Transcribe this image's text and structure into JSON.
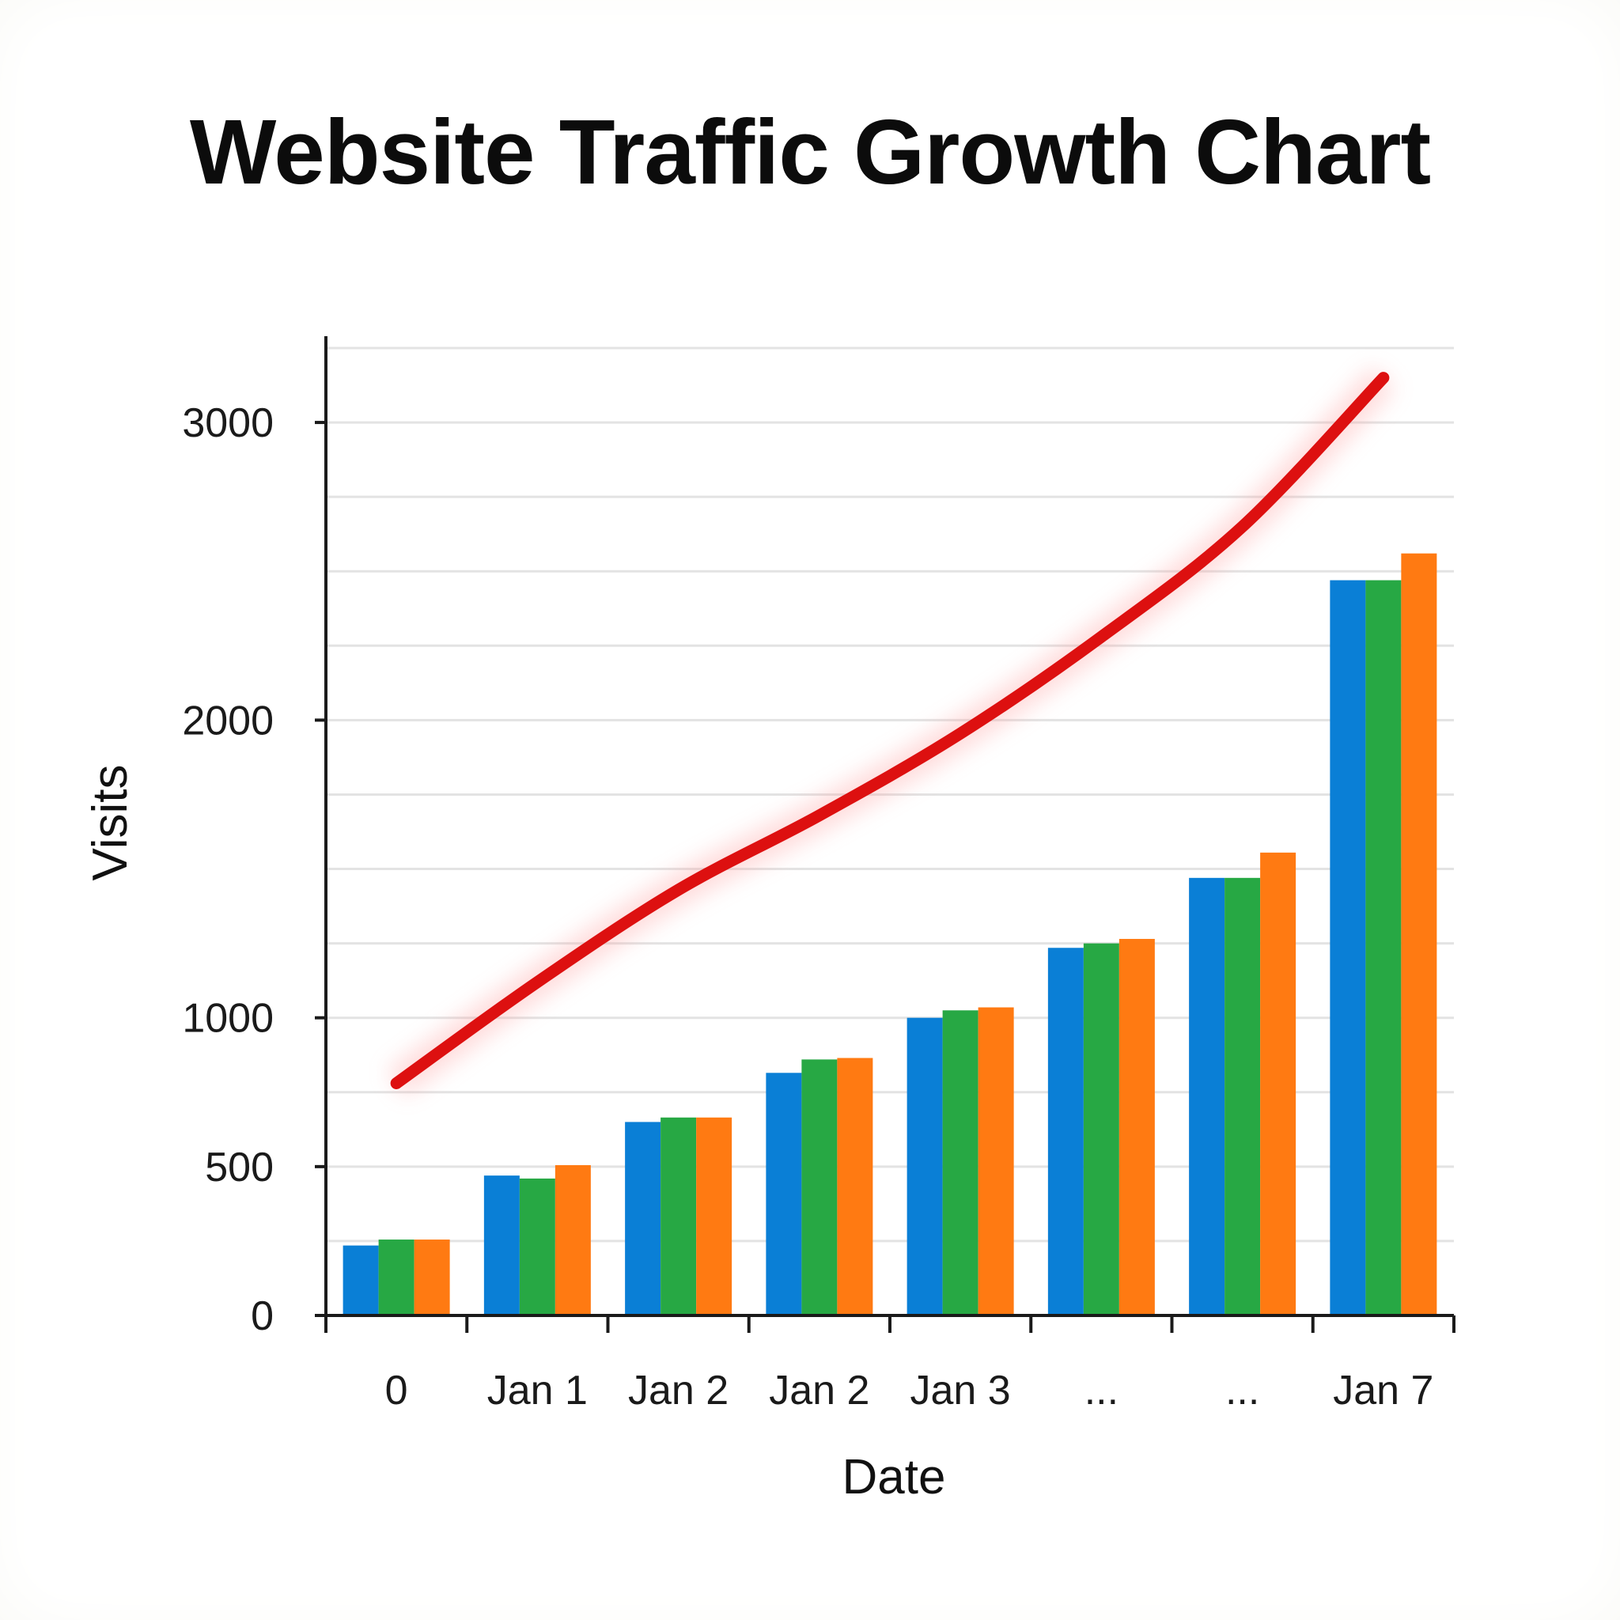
{
  "chart_data": {
    "type": "bar",
    "title": "Website Traffic Growth Chart",
    "xlabel": "Date",
    "ylabel": "Visits",
    "categories": [
      "0",
      "Jan 1",
      "Jan 2",
      "Jan 2",
      "Jan 3",
      "...",
      "...",
      "Jan 7"
    ],
    "ytick_labels": [
      {
        "label": "0",
        "value": 0
      },
      {
        "label": "500",
        "value": 500
      },
      {
        "label": "1000",
        "value": 1000
      },
      {
        "label": "2000",
        "value": 2000
      },
      {
        "label": "3000",
        "value": 3000
      }
    ],
    "ylim": [
      0,
      3250
    ],
    "grid": true,
    "legend": "none",
    "series": [
      {
        "type": "bar",
        "color": "#0a7fd6",
        "values": [
          235,
          470,
          650,
          815,
          1000,
          1235,
          1470,
          2470
        ]
      },
      {
        "type": "bar",
        "color": "#27a844",
        "values": [
          255,
          460,
          665,
          860,
          1025,
          1250,
          1470,
          2470
        ]
      },
      {
        "type": "bar",
        "color": "#ff7a12",
        "values": [
          255,
          505,
          665,
          865,
          1035,
          1265,
          1555,
          2560
        ]
      },
      {
        "type": "line",
        "color": "#dd1010",
        "values": [
          780,
          1120,
          1430,
          1680,
          1955,
          2280,
          2650,
          3150
        ]
      }
    ]
  }
}
